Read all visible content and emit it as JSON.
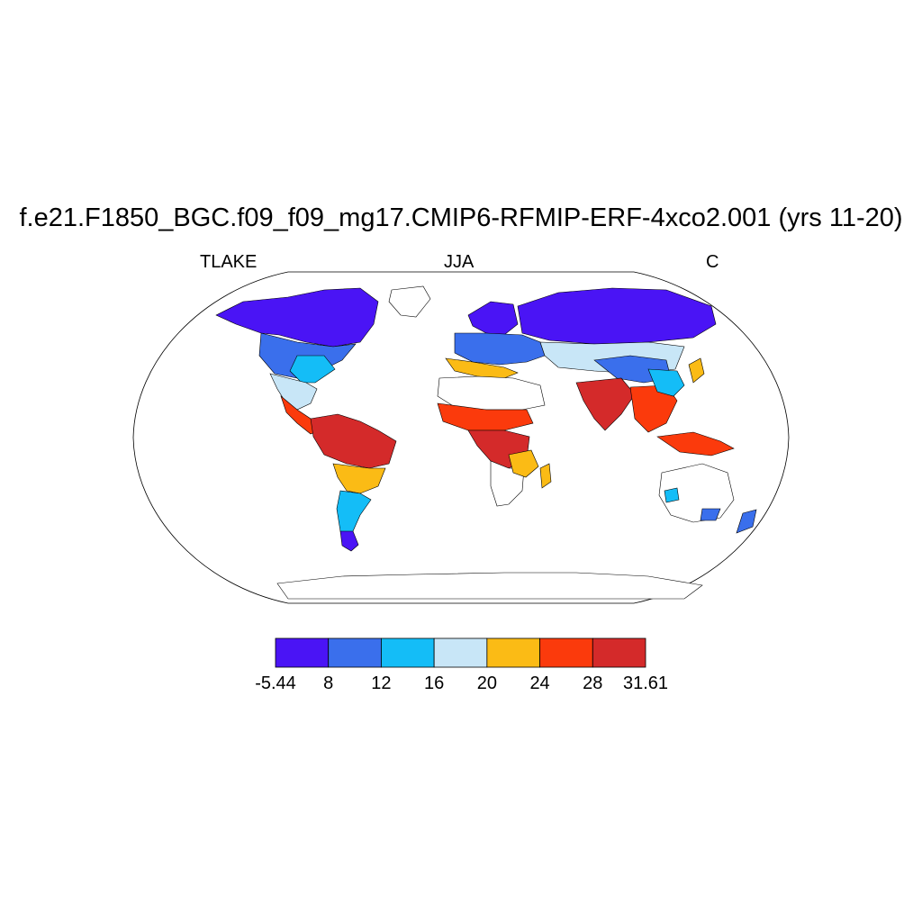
{
  "title": "f.e21.F1850_BGC.f09_f09_mg17.CMIP6-RFMIP-ERF-4xco2.001 (yrs 11-20)",
  "left_label": "TLAKE",
  "center_label": "JJA",
  "right_label": "C",
  "colorbar": {
    "colors": [
      "#4a14f5",
      "#3a6fec",
      "#14bdf7",
      "#c8e6f7",
      "#fbbb15",
      "#fb3a0c",
      "#d42a2a"
    ],
    "labels": [
      "-5.44",
      "8",
      "12",
      "16",
      "20",
      "24",
      "28",
      "31.61"
    ]
  }
}
